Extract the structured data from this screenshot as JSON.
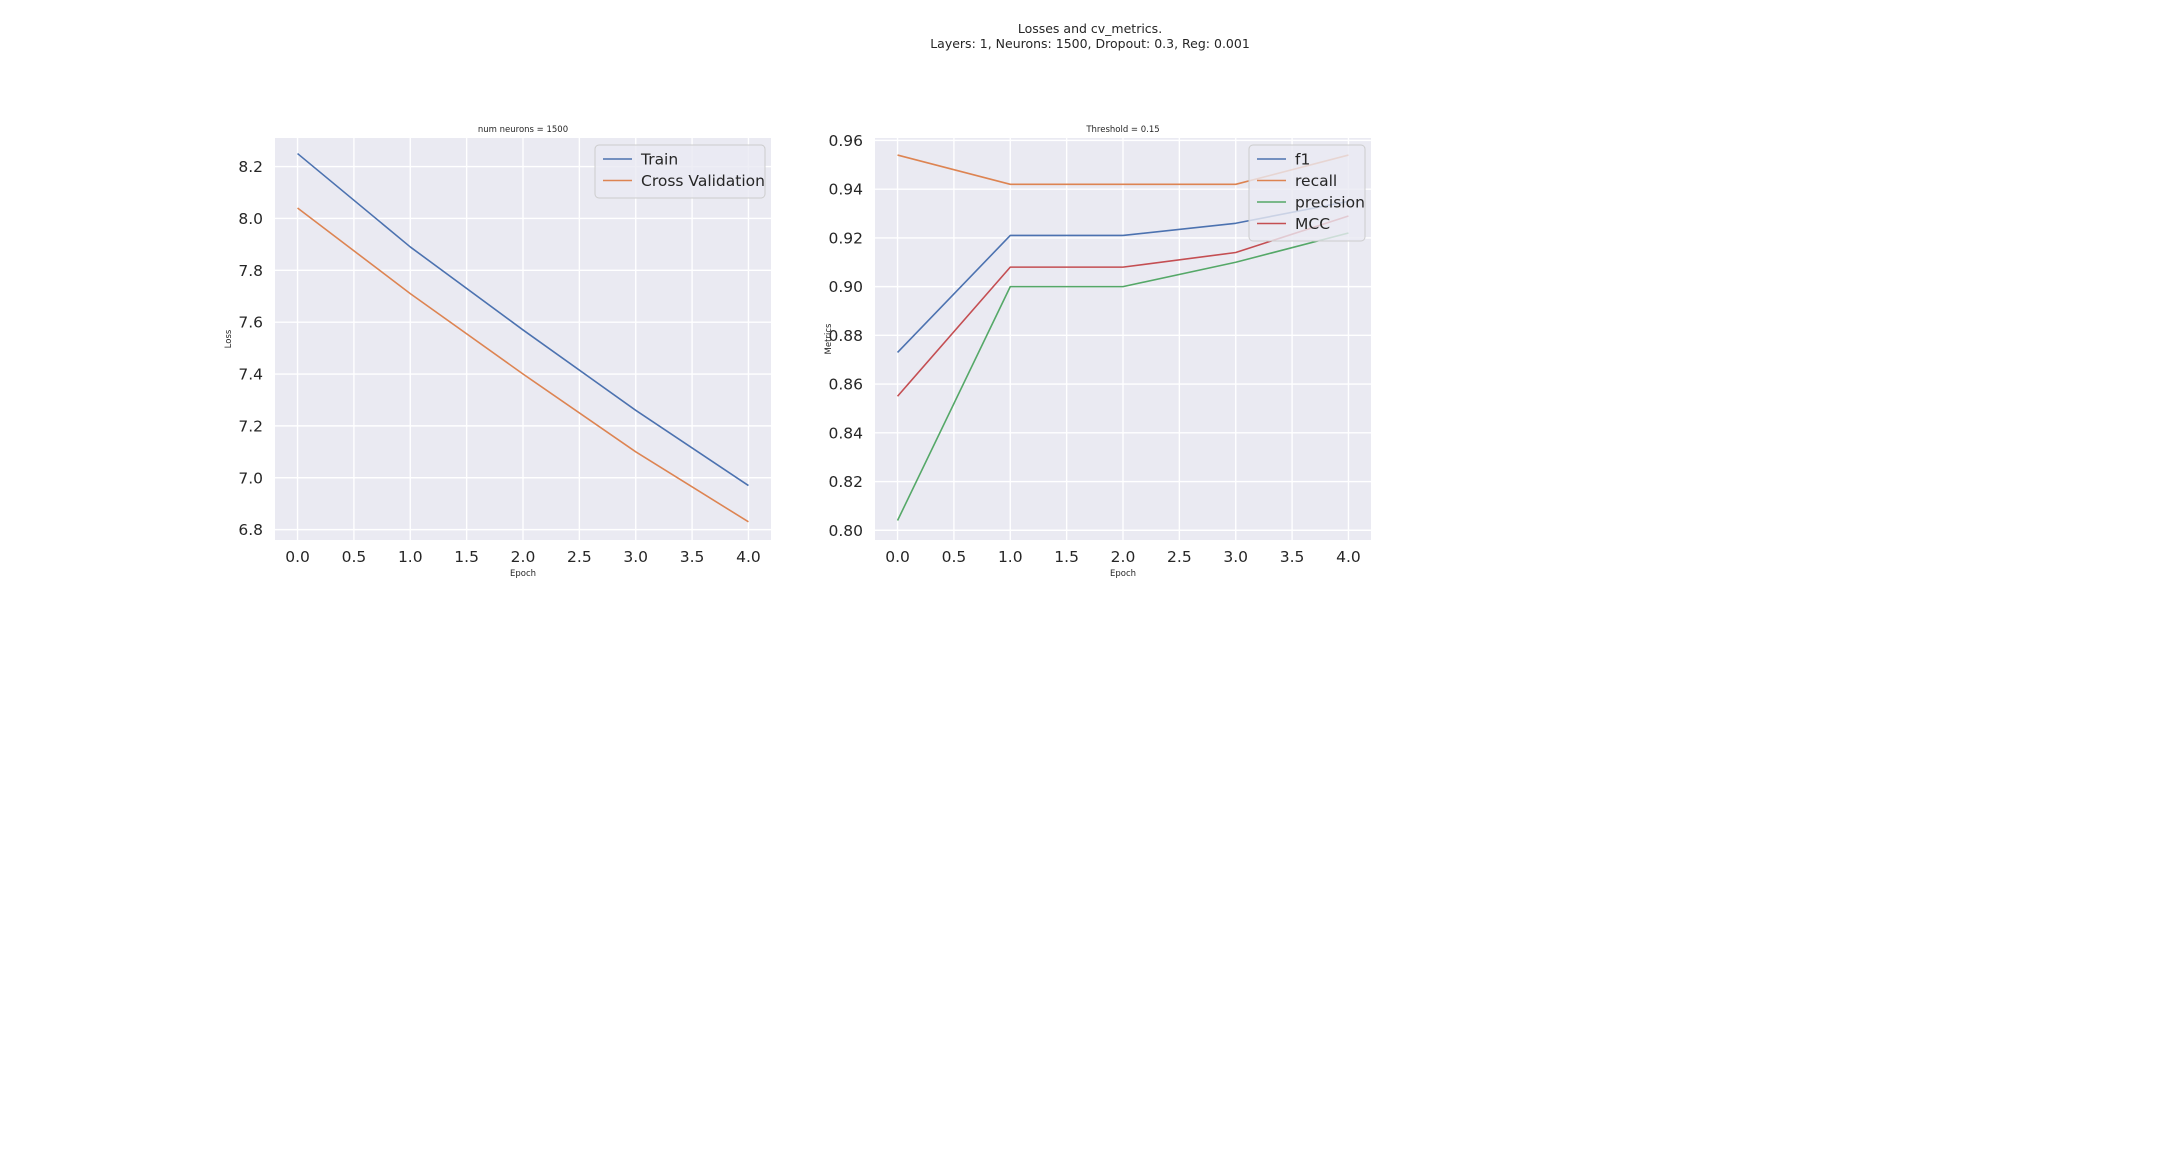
{
  "figure": {
    "title_line1": "Losses and cv_metrics.",
    "title_line2": "Layers: 1, Neurons: 1500, Dropout: 0.3, Reg: 0.001"
  },
  "chart_data": [
    {
      "type": "line",
      "title": "num neurons = 1500",
      "xlabel": "Epoch",
      "ylabel": "Loss",
      "x": [
        0,
        1,
        2,
        3,
        4
      ],
      "xlim": [
        -0.2,
        4.2
      ],
      "ylim": [
        6.76,
        8.31
      ],
      "xticks": [
        0.0,
        0.5,
        1.0,
        1.5,
        2.0,
        2.5,
        3.0,
        3.5,
        4.0
      ],
      "xtick_labels": [
        "0.0",
        "0.5",
        "1.0",
        "1.5",
        "2.0",
        "2.5",
        "3.0",
        "3.5",
        "4.0"
      ],
      "yticks": [
        6.8,
        7.0,
        7.2,
        7.4,
        7.6,
        7.8,
        8.0,
        8.2
      ],
      "ytick_labels": [
        "6.8",
        "7.0",
        "7.2",
        "7.4",
        "7.6",
        "7.8",
        "8.0",
        "8.2"
      ],
      "grid": true,
      "legend_position": "upper right",
      "series": [
        {
          "name": "Train",
          "color": "#4c72b0",
          "values": [
            8.25,
            7.89,
            7.57,
            7.26,
            6.97
          ]
        },
        {
          "name": "Cross Validation",
          "color": "#dd8452",
          "values": [
            8.04,
            7.71,
            7.4,
            7.1,
            6.83
          ]
        }
      ]
    },
    {
      "type": "line",
      "title": "Threshold = 0.15",
      "xlabel": "Epoch",
      "ylabel": "Metrics",
      "x": [
        0,
        1,
        2,
        3,
        4
      ],
      "xlim": [
        -0.2,
        4.2
      ],
      "ylim": [
        0.796,
        0.961
      ],
      "xticks": [
        0.0,
        0.5,
        1.0,
        1.5,
        2.0,
        2.5,
        3.0,
        3.5,
        4.0
      ],
      "xtick_labels": [
        "0.0",
        "0.5",
        "1.0",
        "1.5",
        "2.0",
        "2.5",
        "3.0",
        "3.5",
        "4.0"
      ],
      "yticks": [
        0.8,
        0.82,
        0.84,
        0.86,
        0.88,
        0.9,
        0.92,
        0.94,
        0.96
      ],
      "ytick_labels": [
        "0.80",
        "0.82",
        "0.84",
        "0.86",
        "0.88",
        "0.90",
        "0.92",
        "0.94",
        "0.96"
      ],
      "grid": true,
      "legend_position": "upper right",
      "series": [
        {
          "name": "f1",
          "color": "#4c72b0",
          "values": [
            0.873,
            0.921,
            0.921,
            0.926,
            0.935
          ]
        },
        {
          "name": "recall",
          "color": "#dd8452",
          "values": [
            0.954,
            0.942,
            0.942,
            0.942,
            0.954
          ]
        },
        {
          "name": "precision",
          "color": "#55a868",
          "values": [
            0.804,
            0.9,
            0.9,
            0.91,
            0.922
          ]
        },
        {
          "name": "MCC",
          "color": "#c44e52",
          "values": [
            0.855,
            0.908,
            0.908,
            0.914,
            0.929
          ]
        }
      ]
    }
  ]
}
